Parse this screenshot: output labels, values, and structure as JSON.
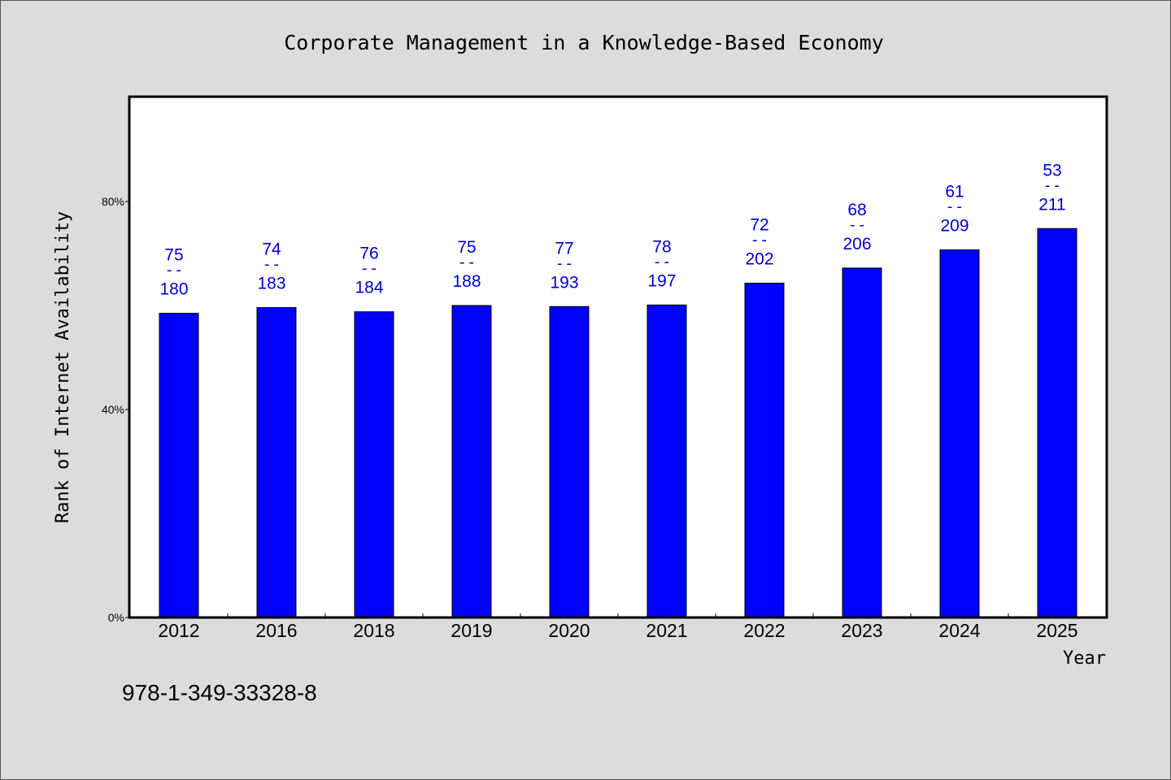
{
  "chart_data": {
    "type": "bar",
    "title": "Corporate Management in a Knowledge-Based Economy",
    "xlabel": "Year",
    "ylabel": "Rank of Internet Availability",
    "categories": [
      "2012",
      "2016",
      "2018",
      "2019",
      "2020",
      "2021",
      "2022",
      "2023",
      "2024",
      "2025"
    ],
    "values": [
      0.585,
      0.596,
      0.588,
      0.6,
      0.598,
      0.601,
      0.643,
      0.672,
      0.707,
      0.748
    ],
    "data_labels": [
      {
        "top": "75",
        "sep": "--",
        "bottom": "180"
      },
      {
        "top": "74",
        "sep": "--",
        "bottom": "183"
      },
      {
        "top": "76",
        "sep": "--",
        "bottom": "184"
      },
      {
        "top": "75",
        "sep": "--",
        "bottom": "188"
      },
      {
        "top": "77",
        "sep": "--",
        "bottom": "193"
      },
      {
        "top": "78",
        "sep": "--",
        "bottom": "197"
      },
      {
        "top": "72",
        "sep": "--",
        "bottom": "202"
      },
      {
        "top": "68",
        "sep": "--",
        "bottom": "206"
      },
      {
        "top": "61",
        "sep": "--",
        "bottom": "209"
      },
      {
        "top": "53",
        "sep": "--",
        "bottom": "211"
      }
    ],
    "ylim": [
      0,
      1.0
    ],
    "yticks": [
      0,
      0.4,
      0.8
    ],
    "ytick_labels": [
      "0%",
      "40%",
      "80%"
    ],
    "grid": false,
    "legend": "none",
    "bar_color": "#0000ff",
    "label_color": "#0000cc",
    "annotation": "978-1-349-33328-8"
  }
}
